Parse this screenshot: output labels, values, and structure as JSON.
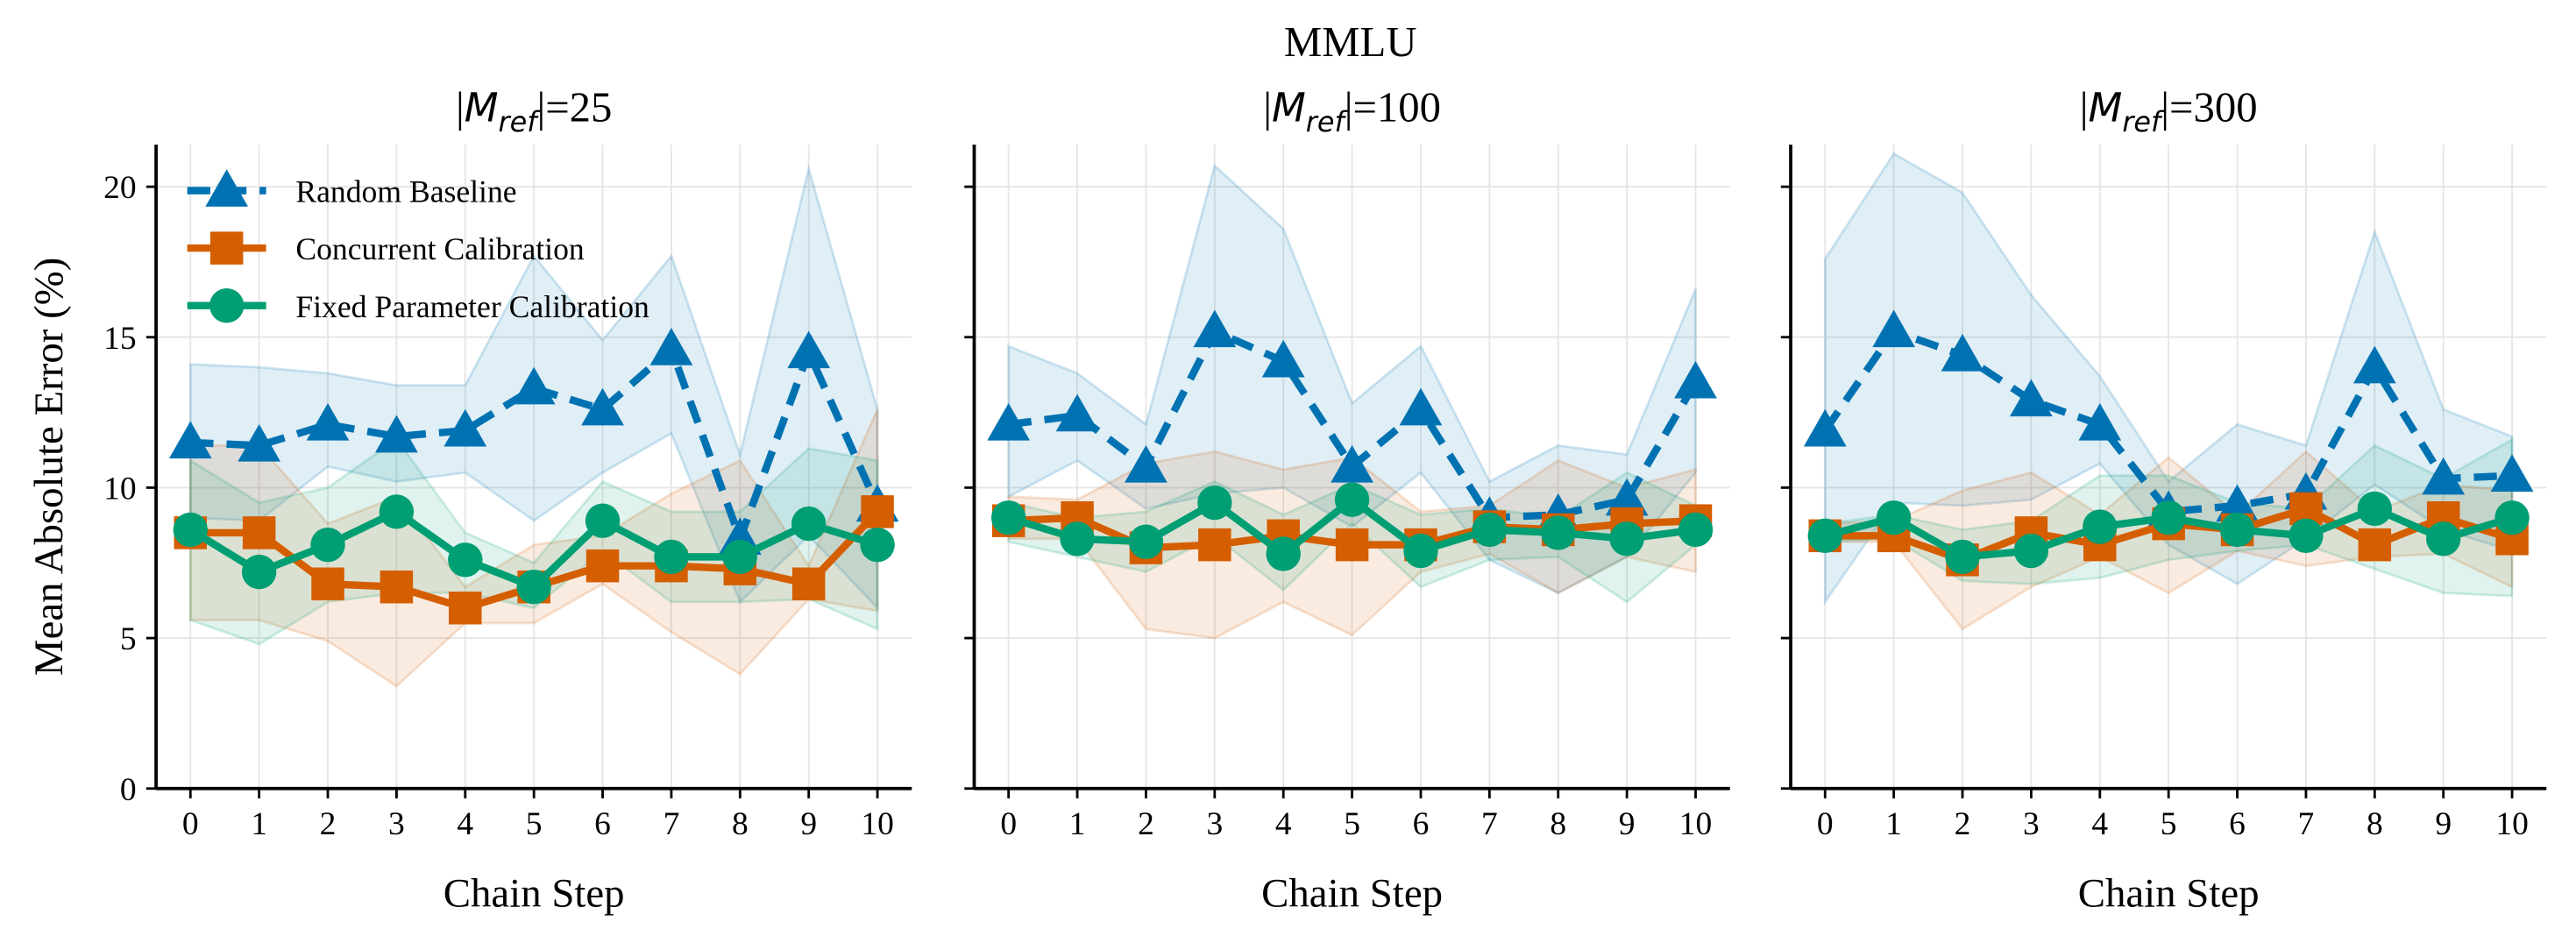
{
  "chart_data": {
    "type": "line",
    "suptitle": "MMLU",
    "ylabel": "Mean Absolute Error (%)",
    "xlabel": "Chain Step",
    "x": [
      0,
      1,
      2,
      3,
      4,
      5,
      6,
      7,
      8,
      9,
      10
    ],
    "xticks": [
      "0",
      "1",
      "2",
      "3",
      "4",
      "5",
      "6",
      "7",
      "8",
      "9",
      "10"
    ],
    "yticks": [
      "0",
      "5",
      "10",
      "15",
      "20"
    ],
    "ytick_values": [
      0,
      5,
      10,
      15,
      20
    ],
    "ylim": [
      0,
      21.4
    ],
    "xlim": [
      -0.5,
      10.5
    ],
    "grid": true,
    "legend_placement": "top-left of first panel",
    "colors": {
      "random": "#0072B2",
      "concurrent": "#D55E00",
      "fixed": "#009E73"
    },
    "legend": [
      {
        "key": "random",
        "label": "Random Baseline",
        "marker": "triangle",
        "linestyle": "dashed"
      },
      {
        "key": "concurrent",
        "label": "Concurrent Calibration",
        "marker": "square",
        "linestyle": "solid"
      },
      {
        "key": "fixed",
        "label": "Fixed Parameter Calibration",
        "marker": "circle",
        "linestyle": "solid"
      }
    ],
    "panels": [
      {
        "title": {
          "pre": "|",
          "var": "M",
          "sub": "ref",
          "post": "|=25"
        },
        "series": {
          "random": {
            "mean": [
              11.5,
              11.4,
              12.1,
              11.7,
              11.9,
              13.3,
              12.6,
              14.6,
              8.3,
              14.5,
              9.4
            ],
            "upper": [
              14.1,
              14.0,
              13.8,
              13.4,
              13.4,
              17.7,
              14.9,
              17.7,
              11.1,
              20.6,
              12.6
            ],
            "lower": [
              9.0,
              8.9,
              10.7,
              10.2,
              10.5,
              8.9,
              10.5,
              11.8,
              6.2,
              8.4,
              6.0
            ]
          },
          "concurrent": {
            "mean": [
              8.5,
              8.5,
              6.8,
              6.7,
              6.0,
              6.7,
              7.4,
              7.4,
              7.3,
              6.8,
              9.2
            ],
            "upper": [
              11.4,
              11.4,
              8.8,
              9.7,
              6.7,
              8.1,
              8.4,
              9.8,
              10.9,
              7.4,
              12.6
            ],
            "lower": [
              5.6,
              5.6,
              4.9,
              3.4,
              5.5,
              5.5,
              6.8,
              5.2,
              3.8,
              6.3,
              5.9
            ]
          },
          "fixed": {
            "mean": [
              8.6,
              7.2,
              8.1,
              9.2,
              7.6,
              6.7,
              8.9,
              7.7,
              7.7,
              8.8,
              8.1
            ],
            "upper": [
              10.9,
              9.5,
              10.0,
              11.6,
              8.5,
              7.5,
              10.2,
              9.2,
              9.2,
              11.3,
              10.9
            ],
            "lower": [
              5.6,
              4.8,
              6.2,
              6.5,
              6.5,
              6.0,
              7.9,
              6.2,
              6.2,
              6.3,
              5.3
            ]
          }
        }
      },
      {
        "title": {
          "pre": "|",
          "var": "M",
          "sub": "ref",
          "post": "|=100"
        },
        "series": {
          "random": {
            "mean": [
              12.1,
              12.4,
              10.7,
              15.2,
              14.2,
              10.7,
              12.6,
              9.0,
              9.1,
              9.6,
              13.5
            ],
            "upper": [
              14.7,
              13.8,
              12.1,
              20.7,
              18.6,
              12.8,
              14.7,
              10.2,
              11.4,
              11.1,
              16.6
            ],
            "lower": [
              9.7,
              10.9,
              9.3,
              9.8,
              10.0,
              8.7,
              10.5,
              7.6,
              6.5,
              7.7,
              10.5
            ]
          },
          "concurrent": {
            "mean": [
              8.9,
              9.0,
              8.0,
              8.1,
              8.4,
              8.1,
              8.1,
              8.7,
              8.6,
              8.8,
              8.9
            ],
            "upper": [
              9.7,
              9.6,
              10.8,
              11.2,
              10.6,
              11.0,
              9.2,
              9.4,
              10.9,
              10.0,
              10.6
            ],
            "lower": [
              8.3,
              8.3,
              5.3,
              5.0,
              6.2,
              5.1,
              7.2,
              7.8,
              6.5,
              7.7,
              7.2
            ]
          },
          "fixed": {
            "mean": [
              9.0,
              8.3,
              8.2,
              9.5,
              7.8,
              9.6,
              7.9,
              8.6,
              8.5,
              8.3,
              8.6
            ],
            "upper": [
              9.5,
              9.0,
              9.2,
              10.2,
              9.1,
              10.1,
              9.1,
              9.3,
              9.0,
              10.5,
              9.4
            ],
            "lower": [
              8.2,
              7.7,
              7.2,
              8.4,
              6.6,
              8.8,
              6.7,
              7.6,
              7.7,
              6.2,
              8.1
            ]
          }
        }
      },
      {
        "title": {
          "pre": "|",
          "var": "M",
          "sub": "ref",
          "post": "|=300"
        },
        "series": {
          "random": {
            "mean": [
              11.9,
              15.2,
              14.4,
              12.9,
              12.1,
              9.2,
              9.4,
              9.8,
              14.0,
              10.3,
              10.4
            ],
            "upper": [
              17.6,
              21.1,
              19.8,
              16.4,
              13.7,
              10.2,
              12.1,
              11.4,
              18.5,
              12.6,
              11.7
            ],
            "lower": [
              6.2,
              9.5,
              9.4,
              9.6,
              10.8,
              8.1,
              6.8,
              8.3,
              10.1,
              8.6,
              7.9
            ]
          },
          "concurrent": {
            "mean": [
              8.4,
              8.4,
              7.6,
              8.5,
              8.1,
              8.8,
              8.6,
              9.3,
              8.1,
              9.0,
              8.3
            ],
            "upper": [
              8.8,
              8.9,
              9.9,
              10.5,
              9.1,
              11.0,
              9.1,
              11.2,
              9.2,
              10.1,
              9.9
            ],
            "lower": [
              8.2,
              8.2,
              5.3,
              6.7,
              7.7,
              6.5,
              7.9,
              7.4,
              7.7,
              7.8,
              6.7
            ]
          },
          "fixed": {
            "mean": [
              8.4,
              9.0,
              7.7,
              7.9,
              8.7,
              9.0,
              8.6,
              8.4,
              9.3,
              8.3,
              9.0
            ],
            "upper": [
              8.8,
              9.1,
              8.6,
              8.9,
              10.4,
              10.4,
              9.5,
              9.3,
              11.4,
              10.3,
              11.6
            ],
            "lower": [
              8.2,
              8.3,
              6.9,
              6.8,
              7.0,
              7.6,
              7.9,
              8.1,
              7.3,
              6.5,
              6.4
            ]
          }
        }
      }
    ]
  }
}
